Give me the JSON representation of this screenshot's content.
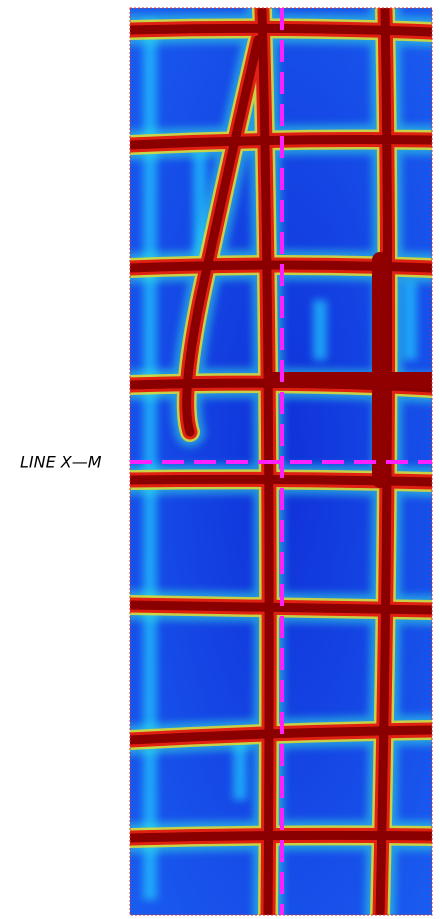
{
  "label": "LINE X—M"
}
